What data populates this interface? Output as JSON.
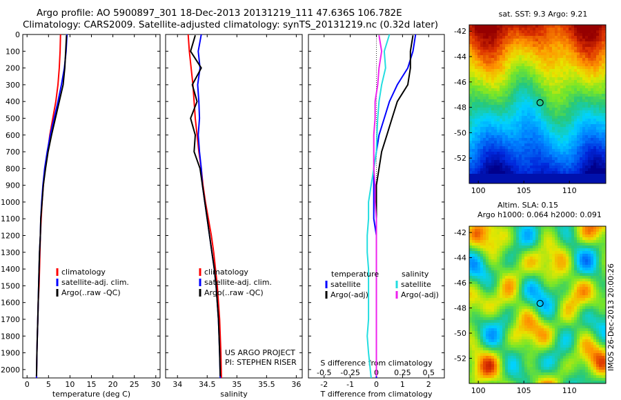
{
  "header": {
    "line1": "Argo profile: AO 5900897_301 18-Dec-2013 20131219_111 47.636S 106.782E",
    "line2": "Climatology: CARS2009. Satellite-adjusted climatology: synTS_20131219.nc (0.32d later)"
  },
  "colors": {
    "climatology": "#ff0000",
    "satellite": "#0000ff",
    "argo": "#000000",
    "sat_salinity": "#22dde0",
    "argo_salinity": "#ee22ee"
  },
  "chart_data": [
    {
      "type": "line",
      "xlabel": "temperature (deg C)",
      "xlim": [
        -1,
        31
      ],
      "xticks": [
        "0",
        "5",
        "10",
        "15",
        "20",
        "25",
        "30"
      ],
      "ylim": [
        2050,
        0
      ],
      "yticks": [
        "0",
        "100",
        "200",
        "300",
        "400",
        "500",
        "600",
        "700",
        "800",
        "900",
        "1000",
        "1100",
        "1200",
        "1300",
        "1400",
        "1500",
        "1600",
        "1700",
        "1800",
        "1900",
        "2000"
      ],
      "legend": [
        "climatology",
        "satellite-adj. clim.",
        "Argo(..raw -QC)"
      ],
      "legend_position": "center-right",
      "series": [
        {
          "name": "climatology",
          "color": "#ff0000",
          "x": [
            7.8,
            7.7,
            7.5,
            7.2,
            6.7,
            6.0,
            5.3,
            4.8,
            4.2,
            3.8,
            3.5,
            3.3,
            3.1,
            3.0,
            2.9,
            2.8,
            2.6,
            2.5,
            2.4,
            2.3,
            2.2
          ],
          "y": [
            0,
            100,
            200,
            300,
            400,
            500,
            600,
            700,
            800,
            900,
            1000,
            1100,
            1200,
            1300,
            1400,
            1500,
            1600,
            1700,
            1800,
            1900,
            2050
          ]
        },
        {
          "name": "satellite-adj. clim.",
          "color": "#0000ff",
          "x": [
            9.3,
            9.1,
            8.7,
            8.0,
            7.2,
            6.3,
            5.4,
            4.7,
            4.1,
            3.7,
            3.4,
            3.2,
            3.1,
            2.9,
            2.8,
            2.7,
            2.6,
            2.5,
            2.4,
            2.3,
            2.2
          ],
          "y": [
            0,
            100,
            200,
            300,
            400,
            500,
            600,
            700,
            800,
            900,
            1000,
            1100,
            1200,
            1300,
            1400,
            1500,
            1600,
            1700,
            1800,
            1900,
            2050
          ]
        },
        {
          "name": "Argo(..raw -QC)",
          "color": "#000000",
          "x": [
            9.2,
            9.0,
            8.8,
            8.4,
            7.5,
            6.6,
            5.7,
            4.9,
            4.3,
            3.8,
            3.5,
            3.2,
            3.1,
            2.9,
            2.8,
            2.7,
            2.6,
            2.5,
            2.4,
            2.3,
            2.2
          ],
          "y": [
            5,
            100,
            200,
            300,
            400,
            500,
            600,
            700,
            800,
            900,
            1000,
            1100,
            1200,
            1300,
            1400,
            1500,
            1600,
            1700,
            1800,
            1900,
            2040
          ]
        }
      ]
    },
    {
      "type": "line",
      "xlabel": "salinity",
      "xlim": [
        33.8,
        36.1
      ],
      "xticks": [
        "34",
        "34.5",
        "35",
        "35.5",
        "36"
      ],
      "ylim": [
        2050,
        0
      ],
      "legend": [
        "climatology",
        "satellite-adj. clim.",
        "Argo(..raw -QC)"
      ],
      "legend_position": "center-right",
      "annotation_lines": [
        "US ARGO PROJECT",
        "PI: STEPHEN RISER"
      ],
      "series": [
        {
          "name": "climatology",
          "color": "#ff0000",
          "x": [
            34.18,
            34.2,
            34.23,
            34.26,
            34.28,
            34.3,
            34.33,
            34.36,
            34.4,
            34.43,
            34.47,
            34.52,
            34.57,
            34.61,
            34.64,
            34.67,
            34.69,
            34.71,
            34.72,
            34.73,
            34.74
          ],
          "y": [
            0,
            100,
            200,
            300,
            400,
            500,
            600,
            700,
            800,
            900,
            1000,
            1100,
            1200,
            1300,
            1400,
            1500,
            1600,
            1700,
            1800,
            1900,
            2050
          ]
        },
        {
          "name": "satellite-adj. clim.",
          "color": "#0000ff",
          "x": [
            34.4,
            34.35,
            34.38,
            34.34,
            34.36,
            34.37,
            34.35,
            34.37,
            34.4,
            34.42,
            34.46,
            34.5,
            34.54,
            34.58,
            34.62,
            34.65,
            34.67,
            34.69,
            34.7,
            34.71,
            34.72
          ],
          "y": [
            0,
            100,
            200,
            300,
            400,
            500,
            600,
            700,
            800,
            900,
            1000,
            1100,
            1200,
            1300,
            1400,
            1500,
            1600,
            1700,
            1800,
            1900,
            2050
          ]
        },
        {
          "name": "Argo(..raw -QC)",
          "color": "#000000",
          "x": [
            34.3,
            34.22,
            34.4,
            34.25,
            34.33,
            34.22,
            34.3,
            34.28,
            34.38,
            34.42,
            34.46,
            34.5,
            34.54,
            34.58,
            34.62,
            34.65,
            34.67,
            34.69,
            34.7,
            34.71,
            34.72
          ],
          "y": [
            5,
            100,
            200,
            300,
            400,
            500,
            600,
            700,
            800,
            900,
            1000,
            1100,
            1200,
            1300,
            1400,
            1500,
            1600,
            1700,
            1800,
            1900,
            2040
          ]
        }
      ]
    },
    {
      "type": "line",
      "xlabel": "T difference from climatology",
      "xlabel2": "S difference from climatology",
      "xlim": [
        -2.6,
        2.6
      ],
      "xticks": [
        "-2",
        "-1",
        "0",
        "1",
        "2"
      ],
      "xticks_top": [
        "-0.5",
        "-0.25",
        "0",
        "0.25",
        "0.5"
      ],
      "ylim": [
        2050,
        0
      ],
      "legend_temperature_title": "temperature",
      "legend_salinity_title": "salinity",
      "legend": [
        "satellite",
        "Argo(-adj)",
        "satellite",
        "Argo(-adj)"
      ],
      "legend_position": "center",
      "series": [
        {
          "name": "satellite",
          "color": "#0000ff",
          "x": [
            1.5,
            1.4,
            1.2,
            0.8,
            0.5,
            0.3,
            0.1,
            0.0,
            -0.1,
            -0.1,
            -0.1,
            -0.1,
            0.0,
            0.0,
            0.0,
            0.0,
            0.0,
            0.0,
            0.0,
            0.0,
            0.0
          ],
          "y": [
            0,
            100,
            200,
            300,
            400,
            500,
            600,
            700,
            800,
            900,
            1000,
            1100,
            1200,
            1300,
            1400,
            1500,
            1600,
            1700,
            1800,
            1900,
            2050
          ]
        },
        {
          "name": "Argo(-adj)",
          "color": "#000000",
          "x": [
            1.4,
            1.3,
            1.3,
            1.2,
            0.8,
            0.6,
            0.4,
            0.2,
            0.1,
            0.0,
            0.0,
            0.0,
            0.0,
            0.0,
            0.0,
            0.0,
            0.0,
            0.0,
            0.0,
            0.0,
            0.0
          ],
          "y": [
            5,
            100,
            200,
            300,
            400,
            500,
            600,
            700,
            800,
            900,
            1000,
            1100,
            1200,
            1300,
            1400,
            1500,
            1600,
            1700,
            1800,
            1900,
            2040
          ]
        },
        {
          "name": "satellite",
          "color": "#22dde0",
          "x": [
            0.5,
            0.3,
            0.35,
            0.2,
            0.1,
            0.05,
            0.02,
            0.0,
            -0.1,
            -0.2,
            -0.3,
            -0.3,
            -0.35,
            -0.35,
            -0.3,
            -0.3,
            -0.3,
            -0.3,
            -0.35,
            -0.3,
            -0.2
          ],
          "y": [
            0,
            100,
            200,
            300,
            400,
            500,
            600,
            700,
            800,
            900,
            1000,
            1100,
            1200,
            1300,
            1400,
            1500,
            1600,
            1700,
            1800,
            1900,
            2050
          ]
        },
        {
          "name": "Argo(-adj)",
          "color": "#ee22ee",
          "x": [
            0.1,
            0.2,
            0.1,
            0.05,
            -0.05,
            -0.05,
            -0.1,
            -0.1,
            -0.1,
            -0.05,
            -0.05,
            0.0,
            0.0,
            0.0,
            0.0,
            0.0,
            0.0,
            0.0,
            0.0,
            0.0,
            0.0
          ],
          "y": [
            5,
            100,
            200,
            300,
            400,
            500,
            600,
            700,
            800,
            900,
            1000,
            1100,
            1200,
            1300,
            1400,
            1500,
            1600,
            1700,
            1800,
            1900,
            2040
          ]
        }
      ]
    },
    {
      "type": "heatmap",
      "title": "sat. SST: 9.3 Argo: 9.21",
      "xlim": [
        99,
        114
      ],
      "ylim": [
        -54,
        -41.5
      ],
      "xticks": [
        "100",
        "105",
        "110"
      ],
      "yticks": [
        "-42",
        "-44",
        "-46",
        "-48",
        "-50",
        "-52"
      ],
      "marker": {
        "x": 106.782,
        "y": -47.636
      }
    },
    {
      "type": "heatmap",
      "title": "Altim. SLA: 0.15",
      "subtitle": "Argo h1000: 0.064 h2000: 0.091",
      "xlim": [
        99,
        114
      ],
      "ylim": [
        -54,
        -41.5
      ],
      "xticks": [
        "100",
        "105",
        "110"
      ],
      "yticks": [
        "-42",
        "-44",
        "-46",
        "-48",
        "-50",
        "-52"
      ],
      "side_label": "IMOS 26-Dec-2013 20:00:26",
      "marker": {
        "x": 106.782,
        "y": -47.636
      }
    }
  ]
}
